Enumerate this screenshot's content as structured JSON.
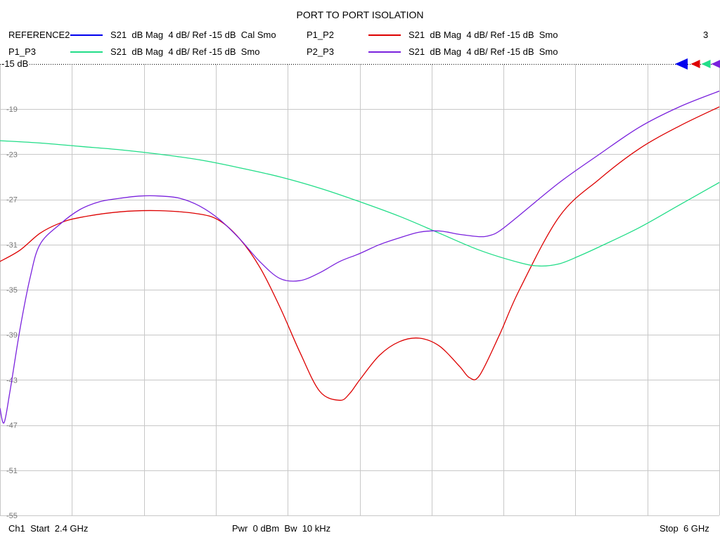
{
  "chart_data": {
    "type": "line",
    "title": "PORT TO PORT ISOLATION",
    "trace_number": "3",
    "reference_label": "-15 dB",
    "x_start_ghz": 2.4,
    "x_stop_ghz": 6.0,
    "ylim": [
      -55,
      -15
    ],
    "ytick_labels": [
      "-15",
      "-19",
      "-23",
      "-27",
      "-31",
      "-35",
      "-39",
      "-43",
      "-47",
      "-51",
      "-55"
    ],
    "ytick_values": [
      -15,
      -19,
      -23,
      -27,
      -31,
      -35,
      -39,
      -43,
      -47,
      -51,
      -55
    ],
    "x_divisions": 10,
    "grid": true,
    "legend": [
      {
        "name": "REFERENCE2",
        "desc": "S21  dB Mag  4 dB/ Ref -15 dB  Cal Smo",
        "color": "#0000ee"
      },
      {
        "name": "P1_P2",
        "desc": "S21  dB Mag  4 dB/ Ref -15 dB  Smo",
        "color": "#dd0000"
      },
      {
        "name": "P1_P3",
        "desc": "S21  dB Mag  4 dB/ Ref -15 dB  Smo",
        "color": "#22dd88"
      },
      {
        "name": "P2_P3",
        "desc": "S21  dB Mag  4 dB/ Ref -15 dB  Smo",
        "color": "#7a22dd"
      }
    ],
    "series": [
      {
        "name": "P1_P2",
        "color": "#dd0000",
        "x": [
          2.4,
          2.5,
          2.6,
          2.7,
          2.8,
          3.0,
          3.2,
          3.4,
          3.5,
          3.6,
          3.7,
          3.8,
          3.9,
          4.0,
          4.1,
          4.15,
          4.2,
          4.3,
          4.4,
          4.5,
          4.6,
          4.7,
          4.75,
          4.8,
          4.9,
          5.0,
          5.2,
          5.4,
          5.6,
          5.8,
          6.0
        ],
        "values": [
          -32.5,
          -31.5,
          -30.0,
          -29.1,
          -28.6,
          -28.1,
          -28.0,
          -28.3,
          -28.9,
          -30.5,
          -33.0,
          -36.5,
          -40.5,
          -44.0,
          -44.8,
          -44.2,
          -43.0,
          -40.8,
          -39.6,
          -39.3,
          -40.0,
          -41.8,
          -42.8,
          -42.6,
          -39.0,
          -35.0,
          -28.5,
          -25.2,
          -22.5,
          -20.5,
          -18.8
        ]
      },
      {
        "name": "P1_P3",
        "color": "#22dd88",
        "x": [
          2.4,
          2.6,
          2.8,
          3.0,
          3.2,
          3.4,
          3.6,
          3.8,
          4.0,
          4.2,
          4.4,
          4.6,
          4.8,
          5.0,
          5.1,
          5.2,
          5.3,
          5.4,
          5.6,
          5.8,
          6.0
        ],
        "values": [
          -21.8,
          -22.0,
          -22.3,
          -22.6,
          -23.0,
          -23.5,
          -24.2,
          -25.0,
          -26.0,
          -27.2,
          -28.5,
          -30.0,
          -31.5,
          -32.6,
          -32.9,
          -32.7,
          -32.0,
          -31.2,
          -29.5,
          -27.5,
          -25.5
        ]
      },
      {
        "name": "P2_P3",
        "color": "#7a22dd",
        "x": [
          2.4,
          2.42,
          2.45,
          2.5,
          2.55,
          2.6,
          2.7,
          2.8,
          2.9,
          3.0,
          3.1,
          3.2,
          3.3,
          3.4,
          3.5,
          3.6,
          3.7,
          3.8,
          3.9,
          4.0,
          4.1,
          4.2,
          4.3,
          4.4,
          4.5,
          4.6,
          4.7,
          4.8,
          4.85,
          4.9,
          5.0,
          5.2,
          5.4,
          5.6,
          5.8,
          6.0
        ],
        "values": [
          -45.5,
          -46.8,
          -44.0,
          -38.5,
          -34.0,
          -31.0,
          -29.2,
          -27.9,
          -27.2,
          -26.9,
          -26.7,
          -26.7,
          -26.9,
          -27.6,
          -28.8,
          -30.5,
          -32.5,
          -34.0,
          -34.2,
          -33.5,
          -32.5,
          -31.8,
          -31.0,
          -30.4,
          -29.9,
          -29.8,
          -30.1,
          -30.3,
          -30.2,
          -29.8,
          -28.4,
          -25.5,
          -23.0,
          -20.6,
          -18.8,
          -17.4
        ]
      }
    ]
  },
  "footer": {
    "channel": "Ch1  Start  2.4 GHz",
    "power": "Pwr  0 dBm  Bw  10 kHz",
    "stop": "Stop  6 GHz"
  }
}
